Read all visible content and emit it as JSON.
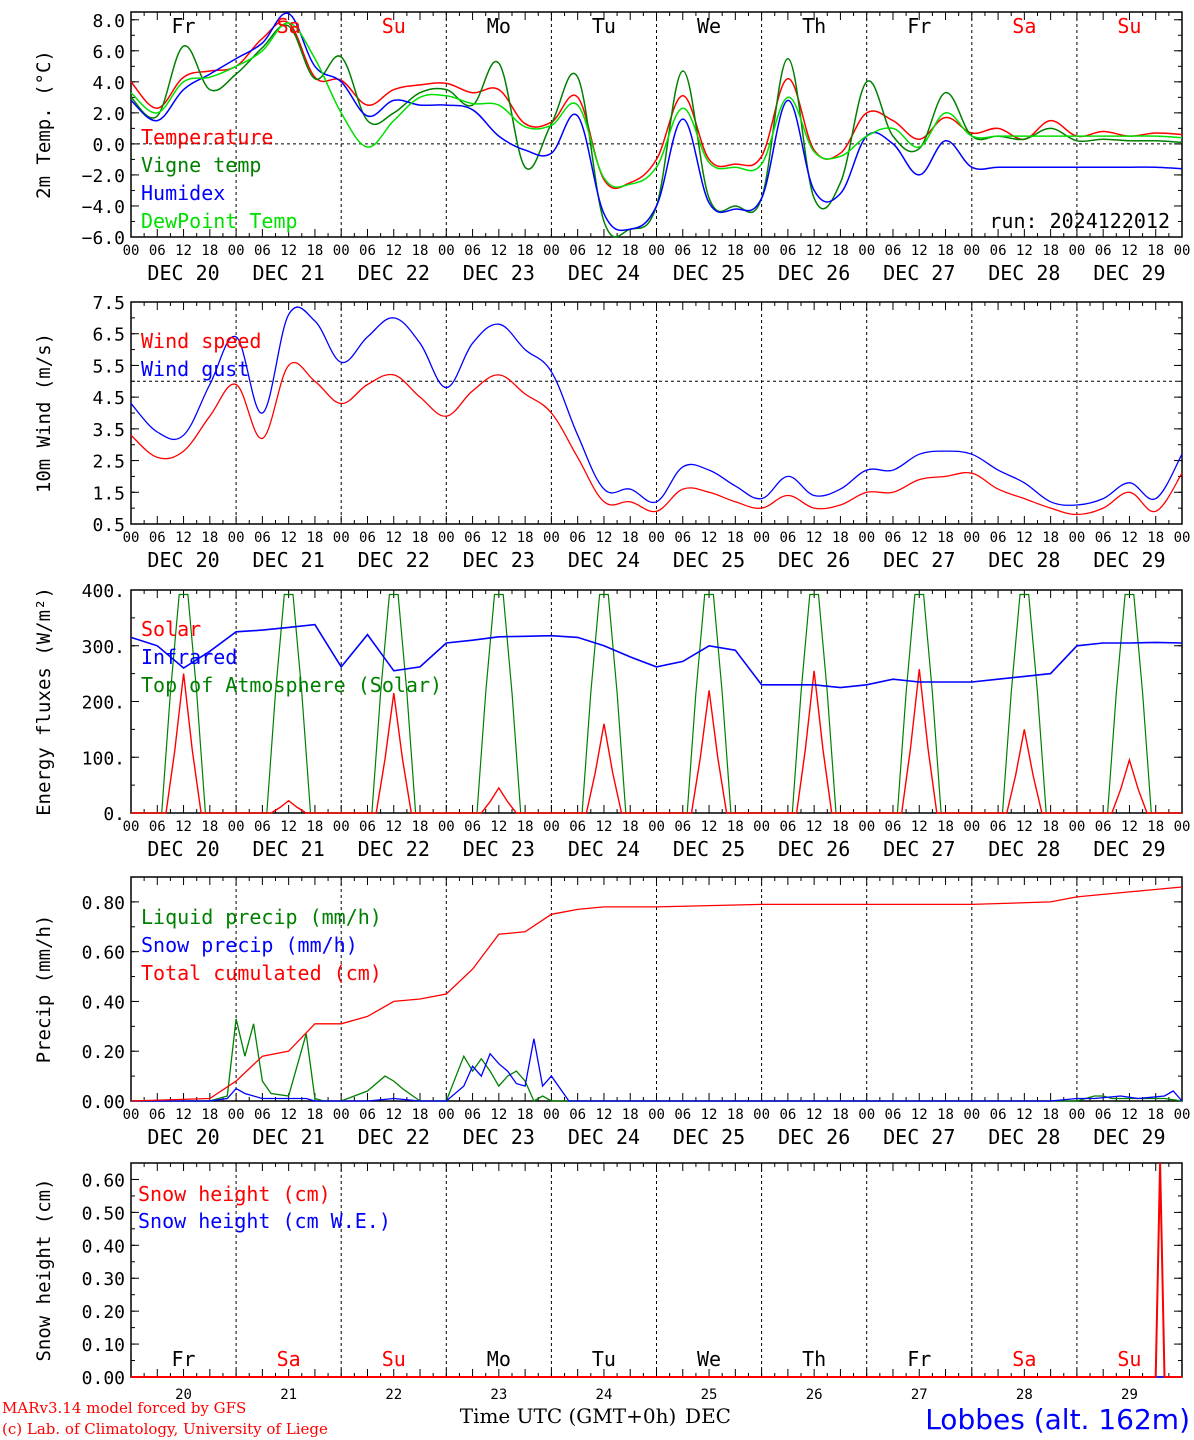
{
  "meta": {
    "run_label": "run: 2024122012",
    "model_credit": "MARv3.14 model forced by GFS",
    "lab_credit": "(c) Lab. of Climatology, University of Liege",
    "station": "Lobbes (alt. 162m)",
    "xaxis_title": "Time UTC (GMT+0h)",
    "month_label": "DEC"
  },
  "colors": {
    "red": "#ff0000",
    "green": "#008000",
    "blue": "#0000ff",
    "lightgreen": "#00e000",
    "axis": "#000000"
  },
  "days": {
    "names": [
      "Fr",
      "Sa",
      "Su",
      "Mo",
      "Tu",
      "We",
      "Th",
      "Fr",
      "Sa",
      "Su"
    ],
    "weekend": [
      false,
      true,
      true,
      false,
      false,
      false,
      false,
      false,
      true,
      true
    ],
    "dates": [
      "DEC 20",
      "DEC 21",
      "DEC 22",
      "DEC 23",
      "DEC 24",
      "DEC 25",
      "DEC 26",
      "DEC 27",
      "DEC 28",
      "DEC 29"
    ],
    "numbers": [
      "20",
      "21",
      "22",
      "23",
      "24",
      "25",
      "26",
      "27",
      "28",
      "29"
    ],
    "hour_ticks": [
      "00",
      "06",
      "12",
      "18"
    ],
    "end_tick": "00"
  },
  "chart_data": [
    {
      "type": "line",
      "id": "temperature",
      "ylabel": "2m Temp. (°C)",
      "ylim": [
        -6,
        8.5
      ],
      "yticks": [
        -6,
        -4,
        -2,
        0,
        2,
        4,
        6,
        8
      ],
      "yticklabels": [
        "−6.0",
        "−4.0",
        "−2.0",
        "0.0",
        "2.0",
        "4.0",
        "6.0",
        "8.0"
      ],
      "ref_line": 0,
      "x_hours": [
        0,
        6,
        12,
        18,
        24,
        30,
        36,
        42,
        48,
        54,
        60,
        66,
        72,
        78,
        84,
        90,
        96,
        102,
        108,
        114,
        120,
        126,
        132,
        138,
        144,
        150,
        156,
        162,
        168,
        174,
        180,
        186,
        192,
        198,
        204,
        210,
        216,
        222,
        228,
        234,
        240
      ],
      "series": [
        {
          "name": "Temperature",
          "color": "red",
          "values": [
            4.0,
            2.3,
            4.3,
            4.7,
            5.0,
            6.8,
            7.8,
            4.3,
            4.1,
            2.5,
            3.5,
            3.8,
            3.9,
            3.3,
            3.5,
            1.3,
            1.4,
            3.0,
            -2.3,
            -2.5,
            -1.0,
            3.1,
            -1.0,
            -1.3,
            -0.8,
            4.2,
            -0.4,
            -0.6,
            2.0,
            1.5,
            0.3,
            1.7,
            0.7,
            1.0,
            0.3,
            1.5,
            0.5,
            0.8,
            0.5,
            0.7,
            0.6
          ]
        },
        {
          "name": "Vigne temp",
          "color": "green",
          "values": [
            3.0,
            1.8,
            6.3,
            3.5,
            4.5,
            6.2,
            7.6,
            4.2,
            5.6,
            1.5,
            2.0,
            3.3,
            3.5,
            2.5,
            5.2,
            -1.5,
            1.3,
            4.3,
            -5.0,
            -5.5,
            -4.0,
            4.7,
            -3.5,
            -4.0,
            -3.5,
            5.5,
            -3.5,
            -2.5,
            4.0,
            0.5,
            -0.3,
            3.3,
            0.5,
            0.5,
            0.3,
            1.0,
            0.2,
            0.3,
            0.2,
            0.2,
            0.1
          ]
        },
        {
          "name": "Humidex",
          "color": "blue",
          "values": [
            2.8,
            1.5,
            3.5,
            4.5,
            5.5,
            6.5,
            8.4,
            5.0,
            4.0,
            1.8,
            2.8,
            2.5,
            2.5,
            2.2,
            0.5,
            -0.4,
            -0.6,
            1.8,
            -4.5,
            -5.5,
            -4.0,
            1.6,
            -3.8,
            -4.2,
            -3.5,
            2.8,
            -3.0,
            -3.2,
            0.5,
            0.0,
            -2.0,
            0.2,
            -1.5,
            -1.5,
            -1.5,
            -1.5,
            -1.5,
            -1.5,
            -1.5,
            -1.5,
            -1.6
          ]
        },
        {
          "name": "DewPoint Temp",
          "color": "lightgreen",
          "values": [
            3.3,
            2.0,
            4.0,
            4.3,
            5.0,
            6.0,
            7.8,
            5.5,
            2.0,
            -0.2,
            1.5,
            3.0,
            3.1,
            2.6,
            2.5,
            1.1,
            1.2,
            2.5,
            -2.2,
            -2.6,
            -1.5,
            2.3,
            -1.2,
            -1.5,
            -1.3,
            3.0,
            -0.5,
            -0.8,
            0.5,
            1.0,
            -0.2,
            2.0,
            0.5,
            0.5,
            0.5,
            0.5,
            0.5,
            0.5,
            0.5,
            0.5,
            0.4
          ]
        }
      ]
    },
    {
      "type": "line",
      "id": "wind",
      "ylabel": "10m Wind (m/s)",
      "ylim": [
        0.5,
        7.5
      ],
      "yticks": [
        0.5,
        1.5,
        2.5,
        3.5,
        4.5,
        5.5,
        6.5,
        7.5
      ],
      "yticklabels": [
        "0.5",
        "1.5",
        "2.5",
        "3.5",
        "4.5",
        "5.5",
        "6.5",
        "7.5"
      ],
      "ref_line": 5,
      "x_hours": [
        0,
        6,
        12,
        18,
        24,
        30,
        36,
        42,
        48,
        54,
        60,
        66,
        72,
        78,
        84,
        90,
        96,
        102,
        108,
        114,
        120,
        126,
        132,
        138,
        144,
        150,
        156,
        162,
        168,
        174,
        180,
        186,
        192,
        198,
        204,
        210,
        216,
        222,
        228,
        234,
        240
      ],
      "series": [
        {
          "name": "Wind speed",
          "color": "red",
          "values": [
            3.3,
            2.6,
            2.8,
            3.9,
            4.9,
            3.2,
            5.5,
            5.0,
            4.3,
            4.9,
            5.2,
            4.5,
            3.9,
            4.7,
            5.2,
            4.6,
            4.0,
            2.6,
            1.2,
            1.2,
            0.9,
            1.6,
            1.5,
            1.2,
            1.0,
            1.4,
            1.0,
            1.1,
            1.5,
            1.5,
            1.9,
            2.0,
            2.1,
            1.6,
            1.3,
            1.0,
            0.8,
            1.0,
            1.5,
            0.9,
            2.1
          ]
        },
        {
          "name": "Wind gust",
          "color": "blue",
          "values": [
            4.3,
            3.4,
            3.3,
            4.9,
            6.4,
            4.0,
            7.1,
            6.9,
            5.6,
            6.4,
            7.0,
            6.2,
            4.8,
            6.2,
            6.8,
            6.0,
            5.3,
            3.3,
            1.6,
            1.6,
            1.2,
            2.3,
            2.2,
            1.7,
            1.3,
            2.0,
            1.4,
            1.6,
            2.2,
            2.2,
            2.7,
            2.8,
            2.7,
            2.2,
            1.8,
            1.2,
            1.1,
            1.3,
            1.8,
            1.3,
            2.7
          ]
        }
      ]
    },
    {
      "type": "line",
      "id": "energy",
      "ylabel": "Energy fluxes (W/m²)",
      "ylim": [
        0,
        400
      ],
      "yticks": [
        0,
        100,
        200,
        300,
        400
      ],
      "yticklabels": [
        "0.",
        "100.",
        "200.",
        "300.",
        "400."
      ],
      "series": [
        {
          "name": "Solar",
          "color": "red",
          "day_peaks": [
            250,
            22,
            215,
            45,
            160,
            220,
            255,
            258,
            150,
            95
          ]
        },
        {
          "name": "Infrared",
          "color": "blue",
          "x_hours": [
            0,
            6,
            12,
            18,
            24,
            30,
            36,
            42,
            48,
            54,
            60,
            66,
            72,
            78,
            84,
            90,
            96,
            102,
            108,
            114,
            120,
            126,
            132,
            138,
            144,
            150,
            156,
            162,
            168,
            174,
            180,
            186,
            192,
            198,
            204,
            210,
            216,
            222,
            228,
            234,
            240
          ],
          "values": [
            315,
            300,
            260,
            290,
            325,
            328,
            333,
            338,
            262,
            320,
            255,
            262,
            305,
            310,
            316,
            317,
            318,
            315,
            300,
            280,
            262,
            272,
            300,
            292,
            230,
            230,
            230,
            225,
            230,
            240,
            235,
            235,
            235,
            240,
            245,
            250,
            300,
            305,
            305,
            306,
            305
          ]
        },
        {
          "name": "Top of Atmosphere (Solar)",
          "color": "green",
          "day_peak": 392
        }
      ]
    },
    {
      "type": "line",
      "id": "precip",
      "ylabel": "Precip (mm/h)",
      "ylim": [
        0,
        0.9
      ],
      "yticks": [
        0,
        0.2,
        0.4,
        0.6,
        0.8
      ],
      "yticklabels": [
        "0.00",
        "0.20",
        "0.40",
        "0.60",
        "0.80"
      ],
      "series": [
        {
          "name": "Liquid precip (mm/h)",
          "color": "green",
          "x_hours": [
            0,
            18,
            22,
            24,
            26,
            28,
            30,
            32,
            36,
            40,
            42,
            44,
            46,
            48,
            54,
            58,
            60,
            62,
            66,
            72,
            76,
            78,
            80,
            82,
            84,
            86,
            88,
            90,
            92,
            94,
            96,
            100,
            102,
            106,
            110,
            114,
            120,
            216,
            218,
            220,
            222,
            224,
            230,
            236,
            240
          ],
          "values": [
            0,
            0,
            0.02,
            0.33,
            0.18,
            0.31,
            0.08,
            0.03,
            0.02,
            0.27,
            0.01,
            0,
            0,
            0,
            0.04,
            0.1,
            0.08,
            0.05,
            0,
            0,
            0.18,
            0.12,
            0.17,
            0.12,
            0.06,
            0.1,
            0.12,
            0.08,
            0,
            0.02,
            0,
            0,
            0,
            0,
            0,
            0,
            0,
            0,
            0.01,
            0.02,
            0.02,
            0.01,
            0.01,
            0.01,
            0
          ]
        },
        {
          "name": "Snow precip (mm/h)",
          "color": "blue",
          "x_hours": [
            0,
            18,
            22,
            24,
            26,
            28,
            30,
            40,
            42,
            48,
            54,
            60,
            66,
            72,
            76,
            78,
            80,
            82,
            84,
            86,
            88,
            90,
            92,
            94,
            96,
            100,
            106,
            120,
            210,
            216,
            220,
            226,
            230,
            236,
            238,
            240
          ],
          "values": [
            0,
            0,
            0.01,
            0.05,
            0.03,
            0.02,
            0.01,
            0.01,
            0,
            0,
            0,
            0.01,
            0,
            0,
            0.06,
            0.14,
            0.1,
            0.19,
            0.15,
            0.12,
            0.07,
            0.06,
            0.25,
            0.06,
            0.1,
            0,
            0,
            0,
            0,
            0.01,
            0.01,
            0.02,
            0.01,
            0.02,
            0.04,
            0
          ]
        },
        {
          "name": "Total cumulated (cm)",
          "color": "red",
          "x_hours": [
            0,
            18,
            24,
            30,
            36,
            42,
            48,
            54,
            60,
            66,
            72,
            78,
            84,
            90,
            96,
            102,
            108,
            120,
            144,
            168,
            192,
            210,
            216,
            228,
            240
          ],
          "values": [
            0,
            0.01,
            0.08,
            0.18,
            0.2,
            0.31,
            0.31,
            0.34,
            0.4,
            0.41,
            0.43,
            0.53,
            0.67,
            0.68,
            0.75,
            0.77,
            0.78,
            0.78,
            0.79,
            0.79,
            0.79,
            0.8,
            0.82,
            0.84,
            0.86
          ]
        }
      ]
    },
    {
      "type": "line",
      "id": "snow",
      "ylabel": "Snow height (cm)",
      "ylim": [
        0,
        0.65
      ],
      "yticks": [
        0,
        0.1,
        0.2,
        0.3,
        0.4,
        0.5,
        0.6
      ],
      "yticklabels": [
        "0.00",
        "0.10",
        "0.20",
        "0.30",
        "0.40",
        "0.50",
        "0.60"
      ],
      "series": [
        {
          "name": "Snow height (cm)",
          "color": "red",
          "x_hours": [
            0,
            234,
            235,
            236,
            240
          ],
          "values": [
            0,
            0,
            0.65,
            0,
            0
          ]
        },
        {
          "name": "Snow height (cm W.E.)",
          "color": "blue",
          "x_hours": [
            0,
            240
          ],
          "values": [
            0,
            0
          ]
        }
      ]
    }
  ]
}
